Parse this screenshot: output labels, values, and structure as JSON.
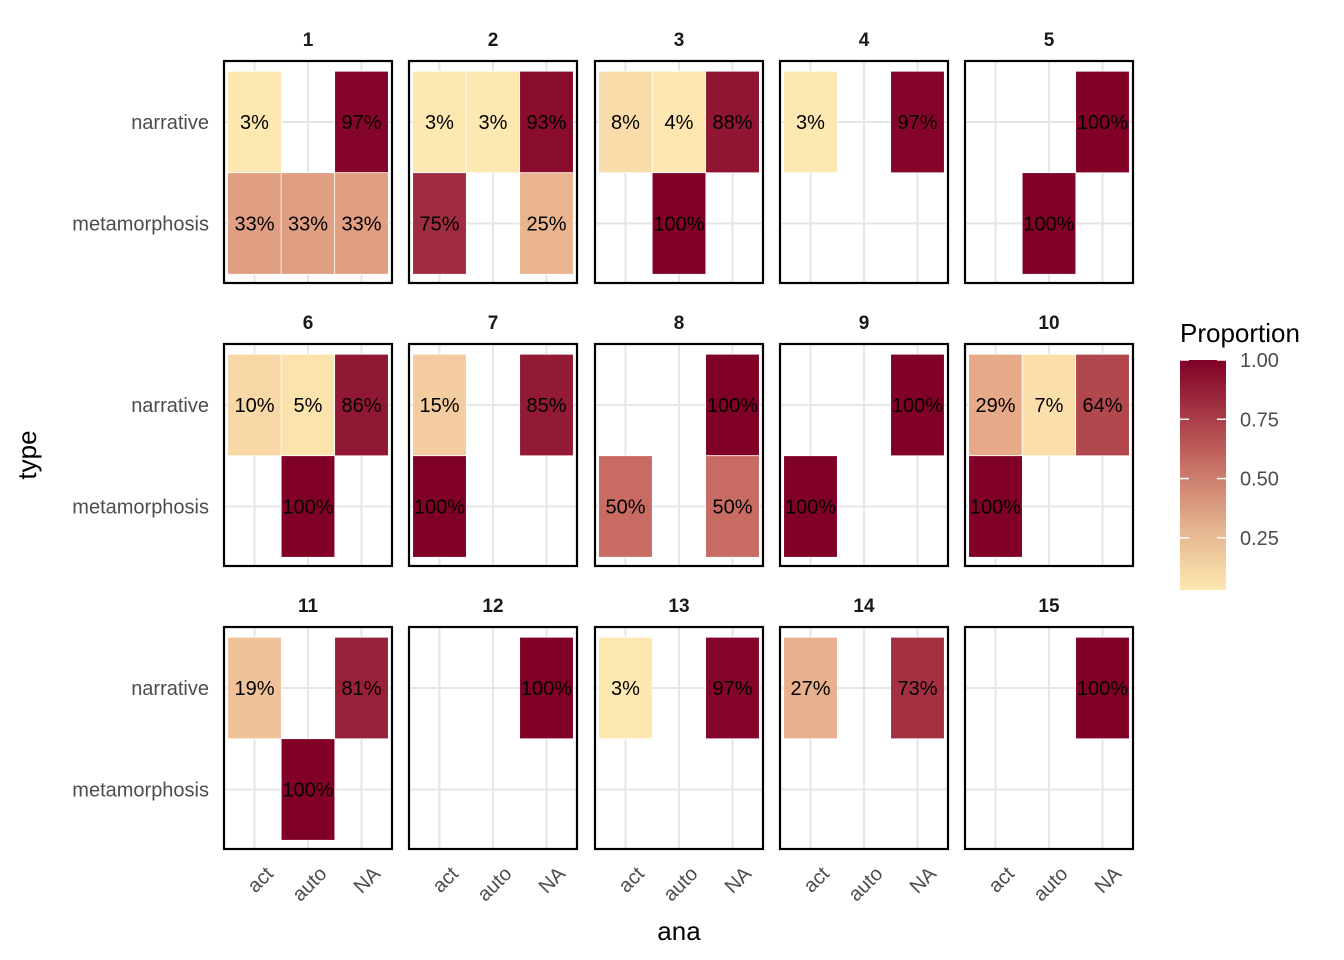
{
  "chart_data": {
    "type": "heatmap",
    "xlabel": "ana",
    "ylabel": "type",
    "x_categories": [
      "act",
      "auto",
      "NA"
    ],
    "y_categories": [
      "narrative",
      "metamorphosis"
    ],
    "legend": {
      "title": "Proportion",
      "ticks": [
        "1.00",
        "0.75",
        "0.50",
        "0.25"
      ],
      "tick_values": [
        1.0,
        0.75,
        0.5,
        0.25
      ],
      "range": [
        0.03,
        1.0
      ],
      "color_low": "#fee8b1",
      "color_high": "#800026",
      "placement": "right"
    },
    "grid": true,
    "facets": [
      {
        "title": "1",
        "cells": [
          {
            "x": "act",
            "y": "narrative",
            "value": 0.03,
            "label": "3%"
          },
          {
            "x": "NA",
            "y": "narrative",
            "value": 0.97,
            "label": "97%"
          },
          {
            "x": "act",
            "y": "metamorphosis",
            "value": 0.33,
            "label": "33%"
          },
          {
            "x": "auto",
            "y": "metamorphosis",
            "value": 0.33,
            "label": "33%"
          },
          {
            "x": "NA",
            "y": "metamorphosis",
            "value": 0.33,
            "label": "33%"
          }
        ]
      },
      {
        "title": "2",
        "cells": [
          {
            "x": "act",
            "y": "narrative",
            "value": 0.03,
            "label": "3%"
          },
          {
            "x": "auto",
            "y": "narrative",
            "value": 0.03,
            "label": "3%"
          },
          {
            "x": "NA",
            "y": "narrative",
            "value": 0.93,
            "label": "93%"
          },
          {
            "x": "act",
            "y": "metamorphosis",
            "value": 0.75,
            "label": "75%"
          },
          {
            "x": "NA",
            "y": "metamorphosis",
            "value": 0.25,
            "label": "25%"
          }
        ]
      },
      {
        "title": "3",
        "cells": [
          {
            "x": "act",
            "y": "narrative",
            "value": 0.08,
            "label": "8%"
          },
          {
            "x": "auto",
            "y": "narrative",
            "value": 0.04,
            "label": "4%"
          },
          {
            "x": "NA",
            "y": "narrative",
            "value": 0.88,
            "label": "88%"
          },
          {
            "x": "auto",
            "y": "metamorphosis",
            "value": 1.0,
            "label": "100%"
          }
        ]
      },
      {
        "title": "4",
        "cells": [
          {
            "x": "act",
            "y": "narrative",
            "value": 0.03,
            "label": "3%"
          },
          {
            "x": "NA",
            "y": "narrative",
            "value": 0.97,
            "label": "97%"
          }
        ]
      },
      {
        "title": "5",
        "cells": [
          {
            "x": "NA",
            "y": "narrative",
            "value": 1.0,
            "label": "100%"
          },
          {
            "x": "auto",
            "y": "metamorphosis",
            "value": 1.0,
            "label": "100%"
          }
        ]
      },
      {
        "title": "6",
        "cells": [
          {
            "x": "act",
            "y": "narrative",
            "value": 0.1,
            "label": "10%"
          },
          {
            "x": "auto",
            "y": "narrative",
            "value": 0.05,
            "label": "5%"
          },
          {
            "x": "NA",
            "y": "narrative",
            "value": 0.86,
            "label": "86%"
          },
          {
            "x": "auto",
            "y": "metamorphosis",
            "value": 1.0,
            "label": "100%"
          }
        ]
      },
      {
        "title": "7",
        "cells": [
          {
            "x": "act",
            "y": "narrative",
            "value": 0.15,
            "label": "15%"
          },
          {
            "x": "NA",
            "y": "narrative",
            "value": 0.85,
            "label": "85%"
          },
          {
            "x": "act",
            "y": "metamorphosis",
            "value": 1.0,
            "label": "100%"
          }
        ]
      },
      {
        "title": "8",
        "cells": [
          {
            "x": "NA",
            "y": "narrative",
            "value": 1.0,
            "label": "100%"
          },
          {
            "x": "act",
            "y": "metamorphosis",
            "value": 0.5,
            "label": "50%"
          },
          {
            "x": "NA",
            "y": "metamorphosis",
            "value": 0.5,
            "label": "50%"
          }
        ]
      },
      {
        "title": "9",
        "cells": [
          {
            "x": "NA",
            "y": "narrative",
            "value": 1.0,
            "label": "100%"
          },
          {
            "x": "act",
            "y": "metamorphosis",
            "value": 1.0,
            "label": "100%"
          }
        ]
      },
      {
        "title": "10",
        "cells": [
          {
            "x": "act",
            "y": "narrative",
            "value": 0.29,
            "label": "29%"
          },
          {
            "x": "auto",
            "y": "narrative",
            "value": 0.07,
            "label": "7%"
          },
          {
            "x": "NA",
            "y": "narrative",
            "value": 0.64,
            "label": "64%"
          },
          {
            "x": "act",
            "y": "metamorphosis",
            "value": 1.0,
            "label": "100%"
          }
        ]
      },
      {
        "title": "11",
        "cells": [
          {
            "x": "act",
            "y": "narrative",
            "value": 0.19,
            "label": "19%"
          },
          {
            "x": "NA",
            "y": "narrative",
            "value": 0.81,
            "label": "81%"
          },
          {
            "x": "auto",
            "y": "metamorphosis",
            "value": 1.0,
            "label": "100%"
          }
        ]
      },
      {
        "title": "12",
        "cells": [
          {
            "x": "NA",
            "y": "narrative",
            "value": 1.0,
            "label": "100%"
          }
        ]
      },
      {
        "title": "13",
        "cells": [
          {
            "x": "act",
            "y": "narrative",
            "value": 0.03,
            "label": "3%"
          },
          {
            "x": "NA",
            "y": "narrative",
            "value": 0.97,
            "label": "97%"
          }
        ]
      },
      {
        "title": "14",
        "cells": [
          {
            "x": "act",
            "y": "narrative",
            "value": 0.27,
            "label": "27%"
          },
          {
            "x": "NA",
            "y": "narrative",
            "value": 0.73,
            "label": "73%"
          }
        ]
      },
      {
        "title": "15",
        "cells": [
          {
            "x": "NA",
            "y": "narrative",
            "value": 1.0,
            "label": "100%"
          }
        ]
      }
    ]
  }
}
